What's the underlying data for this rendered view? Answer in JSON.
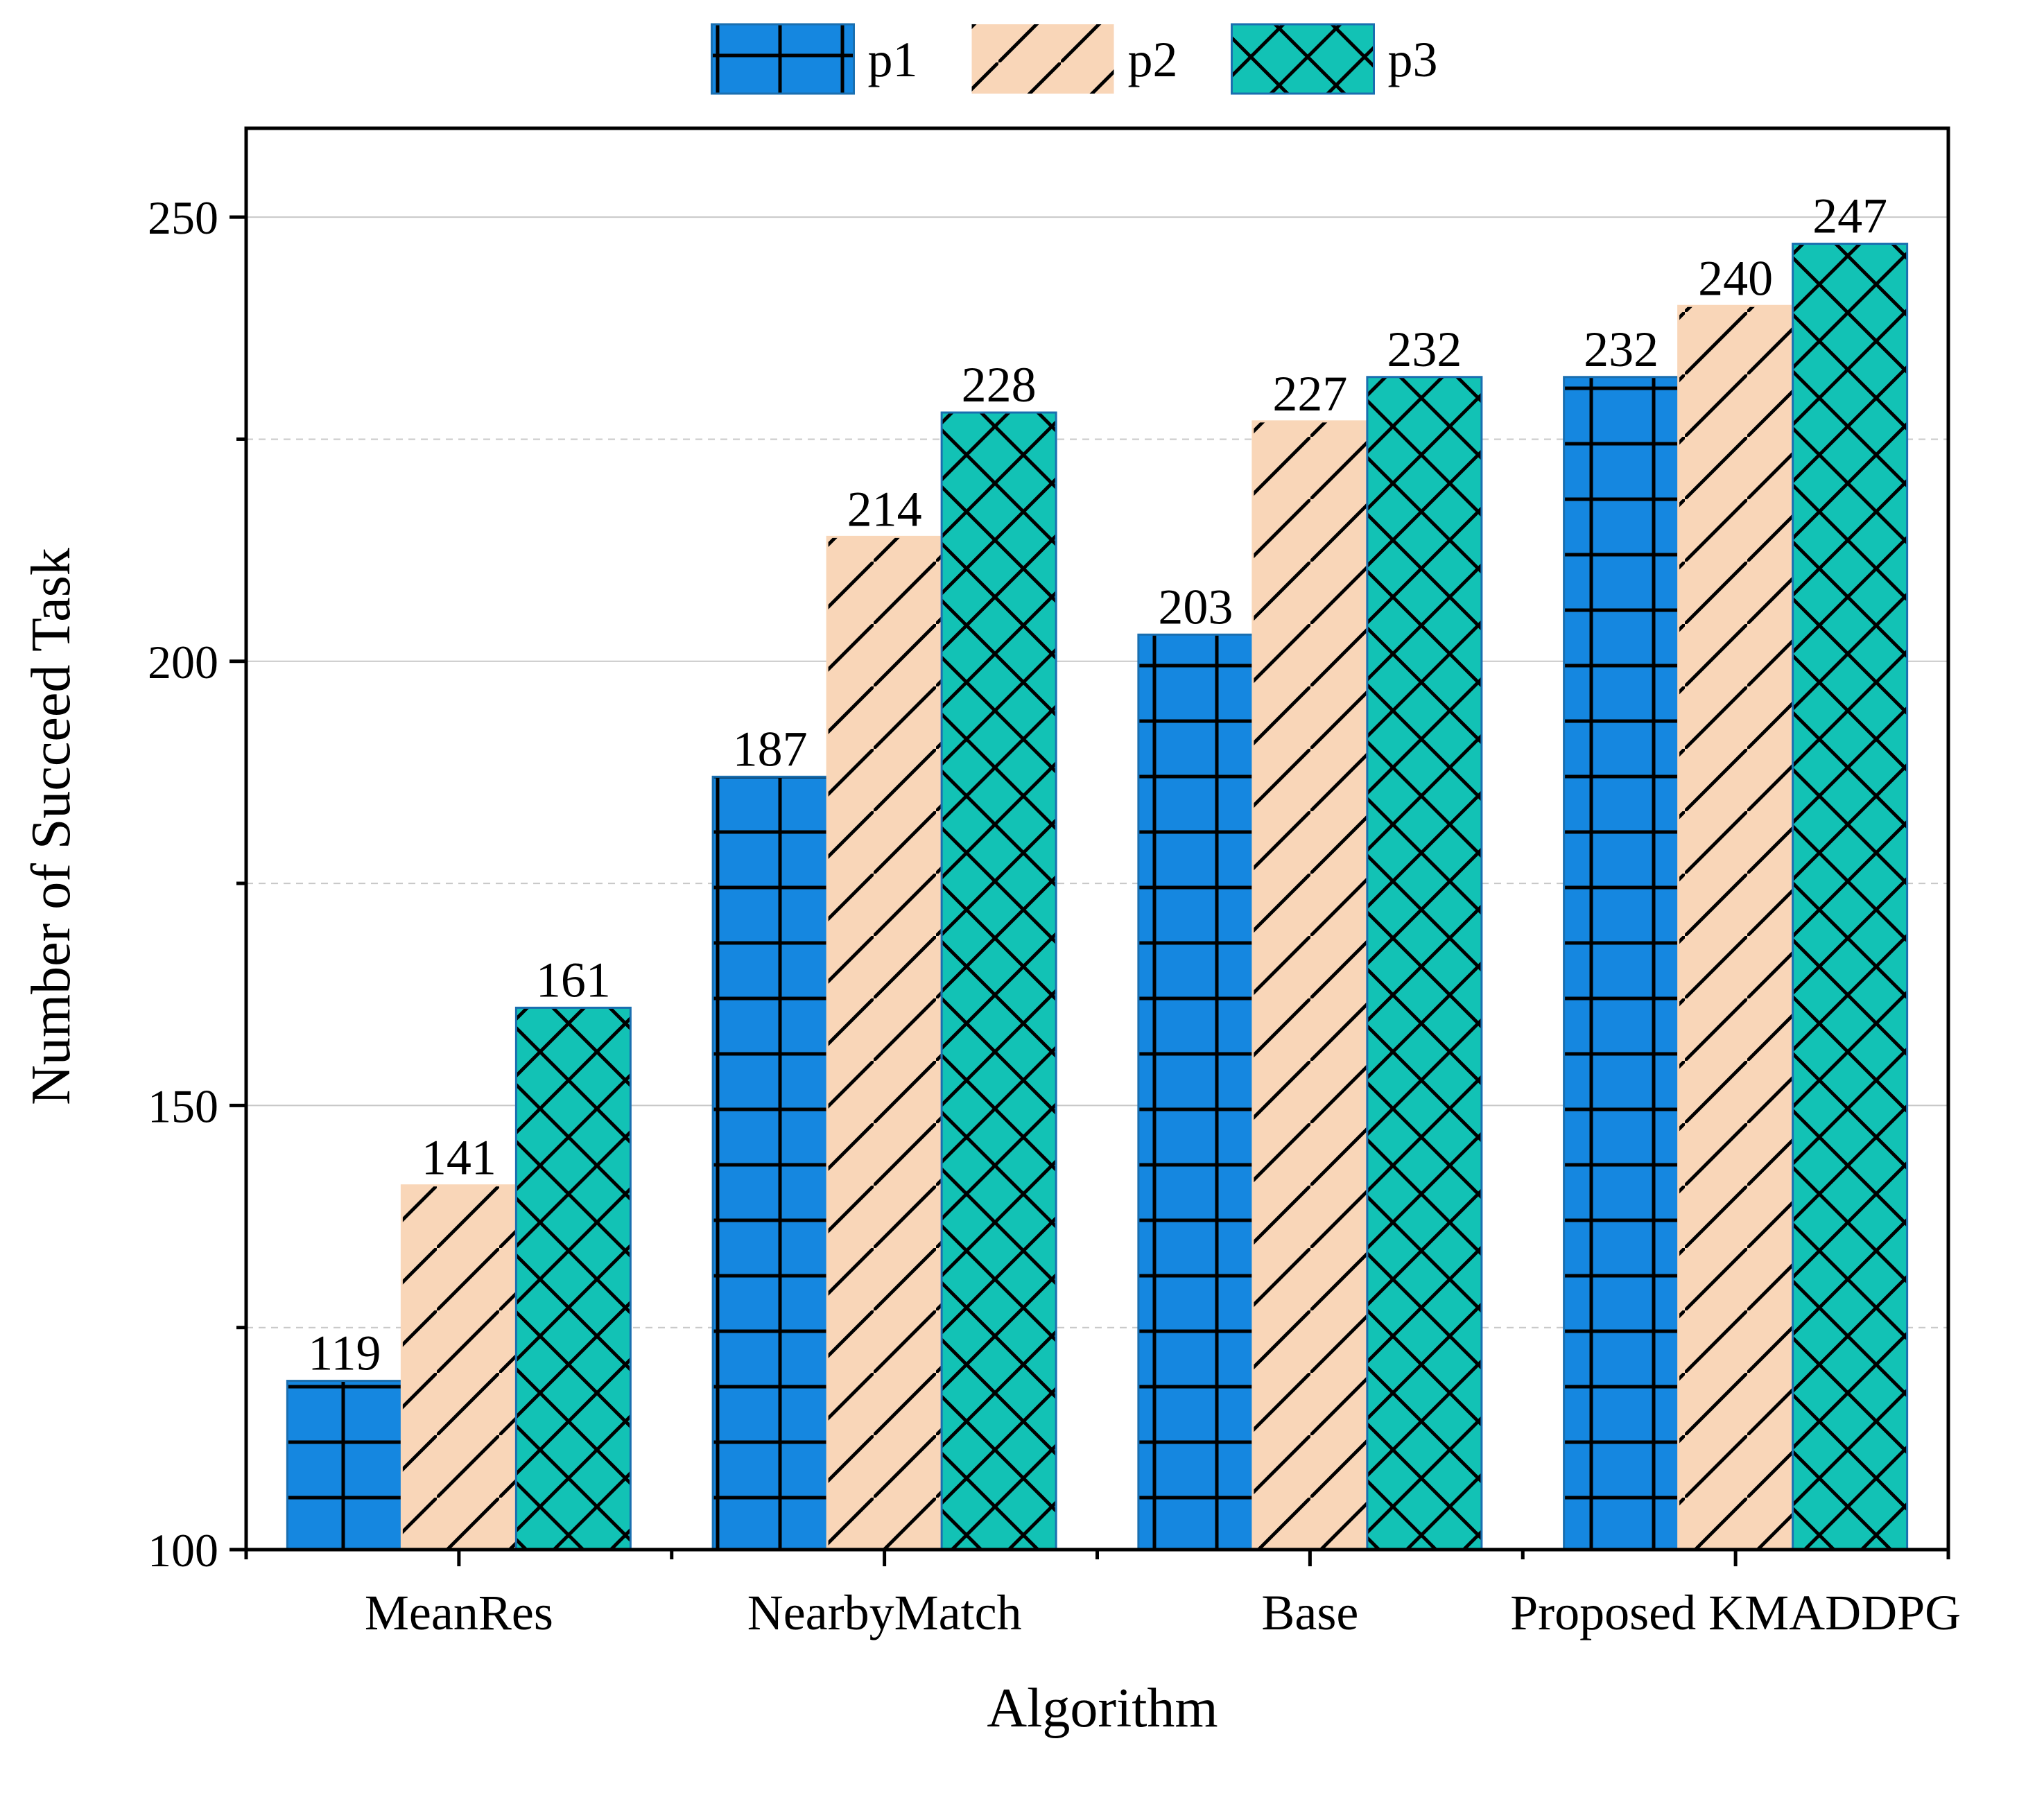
{
  "chart_data": {
    "type": "bar",
    "title": "",
    "xlabel": "Algorithm",
    "ylabel": "Number of Succeed Task",
    "ylim": [
      100,
      260
    ],
    "yticks": [
      100,
      150,
      200,
      250
    ],
    "grid": true,
    "legend_position": "top-center",
    "categories": [
      "MeanRes",
      "NearbyMatch",
      "Base",
      "Proposed KMADDPG"
    ],
    "series": [
      {
        "name": "p1",
        "values": [
          119,
          187,
          203,
          232
        ],
        "color": "#1587e0",
        "pattern": "grid"
      },
      {
        "name": "p2",
        "values": [
          141,
          214,
          227,
          240
        ],
        "color": "#f9d6b8",
        "pattern": "diagonal"
      },
      {
        "name": "p3",
        "values": [
          161,
          228,
          232,
          247
        ],
        "color": "#12c2b5",
        "pattern": "crosshatch"
      }
    ]
  }
}
